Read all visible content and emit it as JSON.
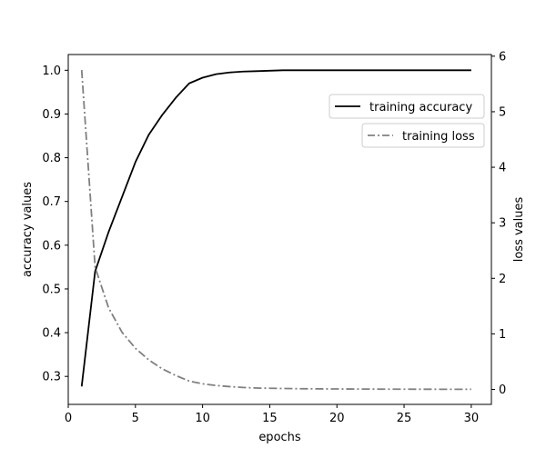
{
  "chart_data": {
    "type": "line",
    "xlabel": "epochs",
    "ylabel_left": "accuracy values",
    "ylabel_right": "loss values",
    "xlim": [
      0,
      31.5
    ],
    "ylim_left": [
      0.236,
      1.036
    ],
    "ylim_right": [
      -0.27,
      6.03
    ],
    "x_ticks": [
      0,
      5,
      10,
      15,
      20,
      25,
      30
    ],
    "y_left_ticks": [
      0.3,
      0.4,
      0.5,
      0.6,
      0.7,
      0.8,
      0.9,
      1.0
    ],
    "y_right_ticks": [
      0,
      1,
      2,
      3,
      4,
      5,
      6
    ],
    "grid": false,
    "x": [
      1,
      2,
      3,
      4,
      5,
      6,
      7,
      8,
      9,
      10,
      11,
      12,
      13,
      14,
      15,
      16,
      17,
      18,
      19,
      20,
      21,
      22,
      23,
      24,
      25,
      26,
      27,
      28,
      29,
      30
    ],
    "series": [
      {
        "name": "training accuracy",
        "axis": "left",
        "color": "#000000",
        "style": "solid",
        "legend": "top-right",
        "values": [
          0.277,
          0.54,
          0.63,
          0.71,
          0.79,
          0.853,
          0.898,
          0.937,
          0.97,
          0.983,
          0.991,
          0.995,
          0.997,
          0.998,
          0.999,
          1.0,
          1.0,
          1.0,
          1.0,
          1.0,
          1.0,
          1.0,
          1.0,
          1.0,
          1.0,
          1.0,
          1.0,
          1.0,
          1.0,
          1.0
        ]
      },
      {
        "name": "training loss",
        "axis": "right",
        "color": "#808080",
        "style": "dashdot",
        "legend": "right",
        "values": [
          5.75,
          2.2,
          1.47,
          1.03,
          0.74,
          0.53,
          0.37,
          0.25,
          0.15,
          0.1,
          0.07,
          0.05,
          0.035,
          0.025,
          0.02,
          0.016,
          0.013,
          0.011,
          0.009,
          0.008,
          0.007,
          0.006,
          0.005,
          0.004,
          0.004,
          0.003,
          0.003,
          0.002,
          0.002,
          0.002
        ]
      }
    ]
  }
}
